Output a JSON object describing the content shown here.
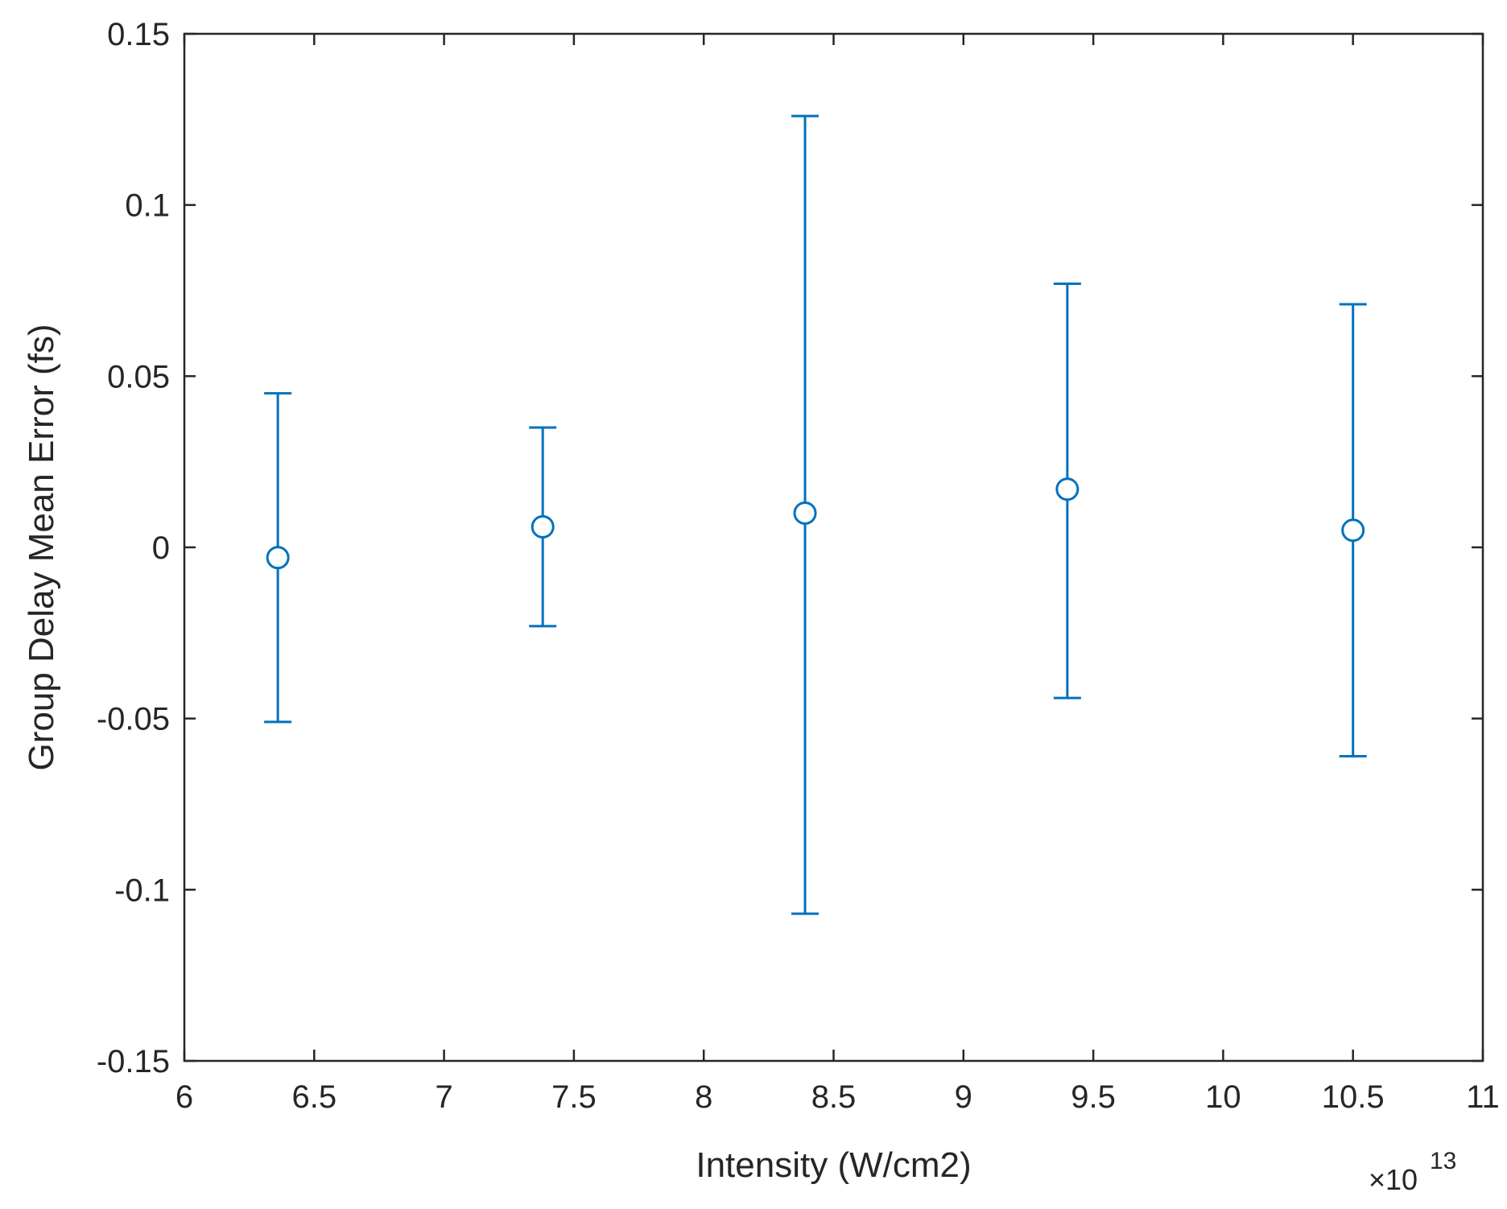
{
  "chart_data": {
    "type": "scatter",
    "style": "errorbar",
    "marker": "circle-open",
    "color": "#0072BD",
    "title": "",
    "xlabel": "Intensity (W/cm2)",
    "ylabel": "Group Delay Mean Error (fs)",
    "x_multiplier": "×10",
    "x_multiplier_exponent": "13",
    "xlim": [
      6,
      11
    ],
    "ylim": [
      -0.15,
      0.15
    ],
    "xticks": [
      6,
      6.5,
      7,
      7.5,
      8,
      8.5,
      9,
      9.5,
      10,
      10.5,
      11
    ],
    "xtick_labels": [
      "6",
      "6.5",
      "7",
      "7.5",
      "8",
      "8.5",
      "9",
      "9.5",
      "10",
      "10.5",
      "11"
    ],
    "yticks": [
      -0.15,
      -0.1,
      -0.05,
      0,
      0.05,
      0.1,
      0.15
    ],
    "ytick_labels": [
      "-0.15",
      "-0.1",
      "-0.05",
      "0",
      "0.05",
      "0.1",
      "0.15"
    ],
    "grid": false,
    "box": true,
    "points": [
      {
        "x": 6.36,
        "y": -0.003,
        "lower": -0.051,
        "upper": 0.045
      },
      {
        "x": 7.38,
        "y": 0.006,
        "lower": -0.023,
        "upper": 0.035
      },
      {
        "x": 8.39,
        "y": 0.01,
        "lower": -0.107,
        "upper": 0.126
      },
      {
        "x": 9.4,
        "y": 0.017,
        "lower": -0.044,
        "upper": 0.077
      },
      {
        "x": 10.5,
        "y": 0.005,
        "lower": -0.061,
        "upper": 0.071
      }
    ]
  }
}
